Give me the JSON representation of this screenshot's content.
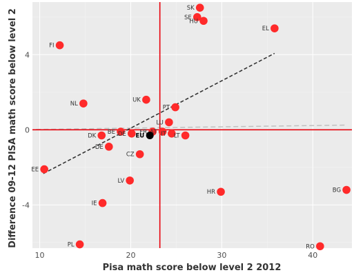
{
  "chart_data": {
    "type": "scatter",
    "title": "",
    "xlabel": "Pisa math score below level 2 2012",
    "ylabel": "Difference 09-12 PISA math score below level 2",
    "xlim": [
      9.2,
      44.3
    ],
    "ylim": [
      -6.3,
      6.8
    ],
    "x_ticks": [
      10,
      20,
      30,
      40
    ],
    "y_ticks": [
      -4,
      0,
      4
    ],
    "grid": true,
    "vertical_ref_x": 23.2,
    "horizontal_ref_y": 0,
    "trend_line": {
      "from": [
        10.4,
        -2.33
      ],
      "to": [
        35.8,
        4.07
      ]
    },
    "flat_line": {
      "from": [
        9.6,
        0.02
      ],
      "to": [
        43.5,
        0.25
      ]
    },
    "points": [
      {
        "label": "SK",
        "x": 27.6,
        "y": 6.5
      },
      {
        "label": "SE",
        "x": 27.3,
        "y": 6.0
      },
      {
        "label": "HU",
        "x": 28.0,
        "y": 5.8
      },
      {
        "label": "EL",
        "x": 35.8,
        "y": 5.4
      },
      {
        "label": "FI",
        "x": 12.2,
        "y": 4.5
      },
      {
        "label": "UK",
        "x": 21.7,
        "y": 1.6
      },
      {
        "label": "NL",
        "x": 14.8,
        "y": 1.4
      },
      {
        "label": "PT",
        "x": 24.9,
        "y": 1.2
      },
      {
        "label": "LU",
        "x": 24.2,
        "y": 0.4
      },
      {
        "label": "BE",
        "x": 18.9,
        "y": -0.1
      },
      {
        "label": "FR",
        "x": 22.4,
        "y": -0.1
      },
      {
        "label": "DK",
        "x": 16.8,
        "y": -0.3
      },
      {
        "label": "DE",
        "x": 20.1,
        "y": -0.2
      },
      {
        "label": "AT",
        "x": 23.5,
        "y": -0.1
      },
      {
        "label": "IT",
        "x": 24.5,
        "y": -0.2
      },
      {
        "label": "LT",
        "x": 26.0,
        "y": -0.3
      },
      {
        "label": "EU",
        "x": 22.1,
        "y": -0.3,
        "highlight": true
      },
      {
        "label": "DE",
        "x": 17.6,
        "y": -0.9
      },
      {
        "label": "CZ",
        "x": 21.0,
        "y": -1.3
      },
      {
        "label": "EE",
        "x": 10.5,
        "y": -2.1
      },
      {
        "label": "LV",
        "x": 19.9,
        "y": -2.7
      },
      {
        "label": "HR",
        "x": 29.9,
        "y": -3.3
      },
      {
        "label": "BG",
        "x": 43.7,
        "y": -3.2
      },
      {
        "label": "IE",
        "x": 16.9,
        "y": -3.9
      },
      {
        "label": "PL",
        "x": 14.4,
        "y": -6.1
      },
      {
        "label": "RO",
        "x": 40.8,
        "y": -6.2
      }
    ],
    "colors": {
      "point": "#ff2a2a",
      "highlight": "#000000",
      "ref_line": "#e8000b",
      "trend": "#333333",
      "flat": "#c0c0c0"
    }
  }
}
